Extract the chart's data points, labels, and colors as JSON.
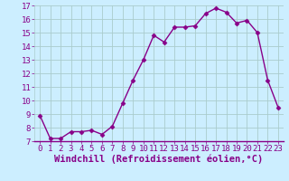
{
  "x": [
    0,
    1,
    2,
    3,
    4,
    5,
    6,
    7,
    8,
    9,
    10,
    11,
    12,
    13,
    14,
    15,
    16,
    17,
    18,
    19,
    20,
    21,
    22,
    23
  ],
  "y": [
    8.9,
    7.2,
    7.2,
    7.7,
    7.7,
    7.8,
    7.5,
    8.1,
    9.8,
    11.5,
    13.0,
    14.8,
    14.3,
    15.4,
    15.4,
    15.5,
    16.4,
    16.8,
    16.5,
    15.7,
    15.9,
    15.0,
    11.5,
    9.5
  ],
  "line_color": "#880088",
  "marker": "D",
  "markersize": 2.5,
  "linewidth": 1.0,
  "xlabel": "Windchill (Refroidissement éolien,°C)",
  "xlim": [
    -0.5,
    23.5
  ],
  "ylim": [
    7,
    17
  ],
  "yticks": [
    7,
    8,
    9,
    10,
    11,
    12,
    13,
    14,
    15,
    16,
    17
  ],
  "xticks": [
    0,
    1,
    2,
    3,
    4,
    5,
    6,
    7,
    8,
    9,
    10,
    11,
    12,
    13,
    14,
    15,
    16,
    17,
    18,
    19,
    20,
    21,
    22,
    23
  ],
  "bg_color": "#cceeff",
  "grid_color": "#aacccc",
  "tick_label_fontsize": 6.5,
  "xlabel_fontsize": 7.5
}
